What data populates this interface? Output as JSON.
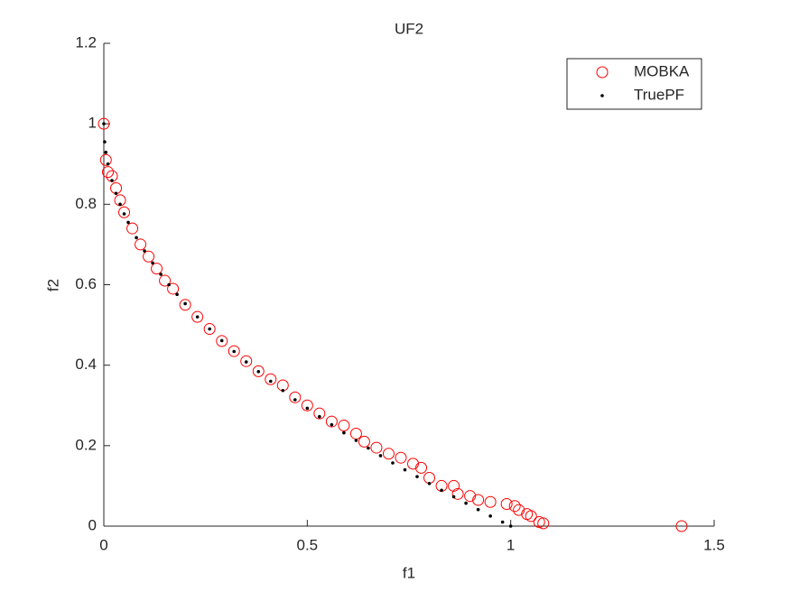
{
  "chart_data": {
    "type": "scatter",
    "title": "UF2",
    "xlabel": "f1",
    "ylabel": "f2",
    "xlim": [
      0,
      1.5
    ],
    "ylim": [
      0,
      1.2
    ],
    "xticks": [
      0,
      0.5,
      1,
      1.5
    ],
    "yticks": [
      0,
      0.2,
      0.4,
      0.6,
      0.8,
      1,
      1.2
    ],
    "legend": "top-right",
    "series": [
      {
        "name": "MOBKA",
        "color": "#ff0000",
        "marker": "circle",
        "x": [
          0,
          0.005,
          0.01,
          0.02,
          0.03,
          0.04,
          0.05,
          0.07,
          0.09,
          0.11,
          0.13,
          0.15,
          0.17,
          0.2,
          0.23,
          0.26,
          0.29,
          0.32,
          0.35,
          0.38,
          0.41,
          0.44,
          0.47,
          0.5,
          0.53,
          0.56,
          0.59,
          0.62,
          0.64,
          0.67,
          0.7,
          0.73,
          0.76,
          0.78,
          0.8,
          0.83,
          0.86,
          0.87,
          0.9,
          0.92,
          0.95,
          0.99,
          1.01,
          1.02,
          1.04,
          1.05,
          1.07,
          1.08,
          1.42
        ],
        "y": [
          1,
          0.91,
          0.88,
          0.87,
          0.84,
          0.81,
          0.78,
          0.74,
          0.7,
          0.67,
          0.64,
          0.61,
          0.59,
          0.55,
          0.52,
          0.49,
          0.46,
          0.435,
          0.41,
          0.385,
          0.365,
          0.35,
          0.32,
          0.3,
          0.28,
          0.26,
          0.25,
          0.23,
          0.21,
          0.195,
          0.18,
          0.17,
          0.155,
          0.145,
          0.12,
          0.1,
          0.1,
          0.08,
          0.075,
          0.065,
          0.06,
          0.055,
          0.05,
          0.04,
          0.03,
          0.025,
          0.01,
          0.007,
          0
        ]
      },
      {
        "name": "TruePF",
        "color": "#000000",
        "marker": "dot",
        "x": [
          0,
          0.002,
          0.005,
          0.01,
          0.02,
          0.03,
          0.04,
          0.05,
          0.06,
          0.08,
          0.1,
          0.12,
          0.14,
          0.16,
          0.18,
          0.2,
          0.23,
          0.26,
          0.29,
          0.32,
          0.35,
          0.38,
          0.41,
          0.44,
          0.47,
          0.5,
          0.53,
          0.56,
          0.59,
          0.62,
          0.65,
          0.68,
          0.71,
          0.74,
          0.77,
          0.8,
          0.83,
          0.86,
          0.89,
          0.92,
          0.95,
          0.98,
          1
        ],
        "y": [
          1,
          0.955,
          0.929,
          0.9,
          0.859,
          0.827,
          0.8,
          0.776,
          0.755,
          0.717,
          0.684,
          0.654,
          0.626,
          0.6,
          0.576,
          0.553,
          0.52,
          0.49,
          0.461,
          0.434,
          0.408,
          0.384,
          0.36,
          0.337,
          0.314,
          0.293,
          0.272,
          0.252,
          0.232,
          0.213,
          0.194,
          0.175,
          0.157,
          0.14,
          0.123,
          0.106,
          0.089,
          0.073,
          0.057,
          0.041,
          0.025,
          0.01,
          0
        ]
      }
    ]
  }
}
